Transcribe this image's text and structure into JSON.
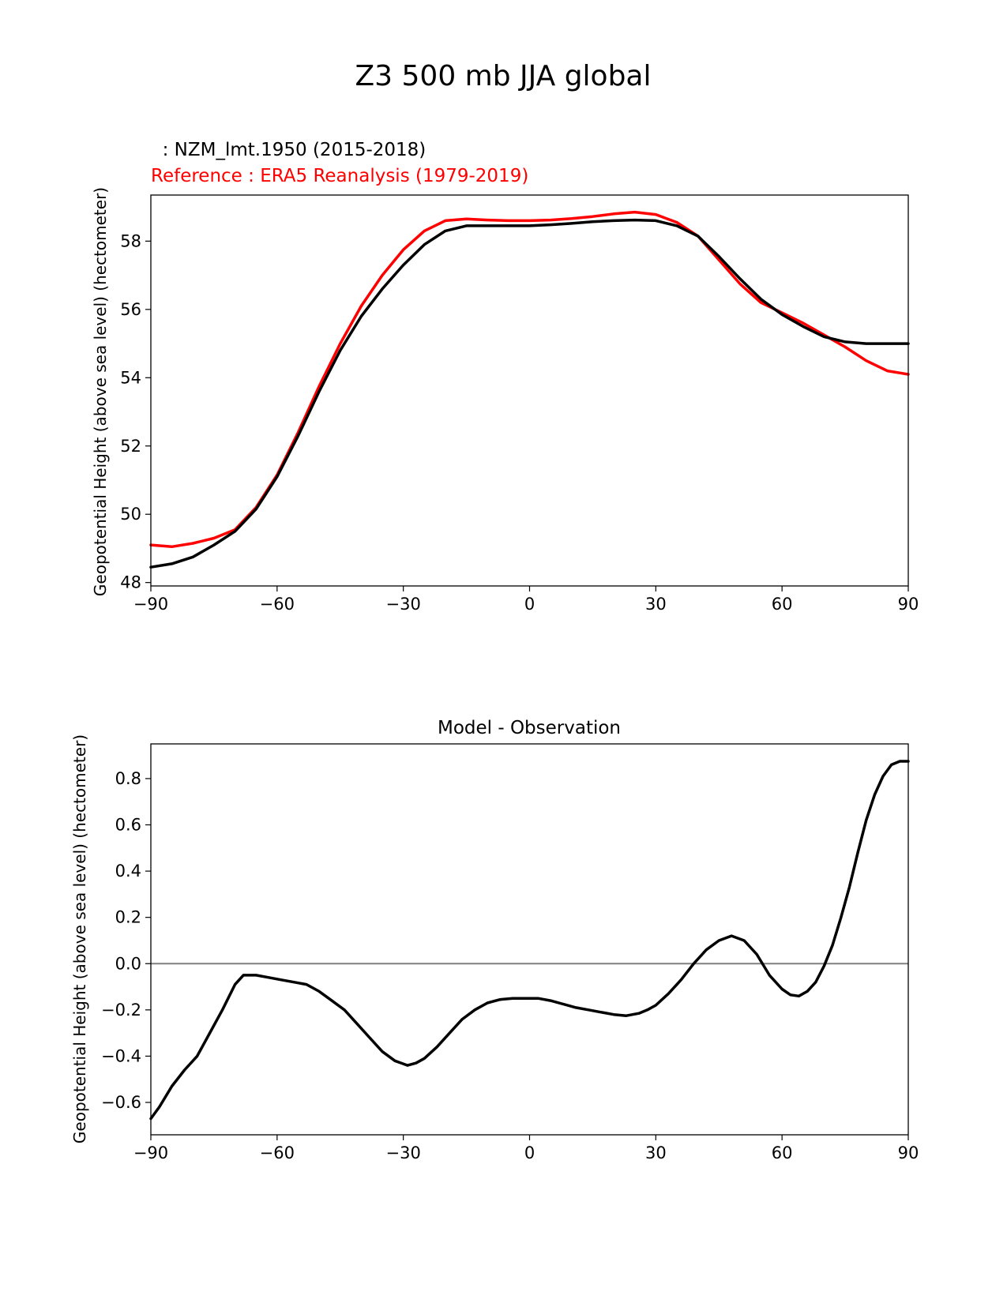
{
  "suptitle": "Z3 500 mb JJA global",
  "colors": {
    "model": "#000000",
    "reference": "#ff0000",
    "zero_line": "#808080",
    "frame": "#000000"
  },
  "chart_data": [
    {
      "type": "line",
      "legend": {
        "model_label": "  : NZM_lmt.1950 (2015-2018)",
        "reference_label": "Reference : ERA5 Reanalysis (1979-2019)"
      },
      "xlabel": "",
      "ylabel": "Geopotential Height (above sea level) (hectometer)",
      "xlim": [
        -90,
        90
      ],
      "ylim": [
        47.9,
        59.35
      ],
      "xticks": [
        -90,
        -60,
        -30,
        0,
        30,
        60,
        90
      ],
      "xtick_labels": [
        "−90",
        "−60",
        "−30",
        "0",
        "30",
        "60",
        "90"
      ],
      "yticks": [
        48,
        50,
        52,
        54,
        56,
        58
      ],
      "ytick_labels": [
        "48",
        "50",
        "52",
        "54",
        "56",
        "58"
      ],
      "x": [
        -90,
        -85,
        -80,
        -75,
        -70,
        -65,
        -60,
        -55,
        -50,
        -45,
        -40,
        -35,
        -30,
        -25,
        -20,
        -15,
        -10,
        -5,
        0,
        5,
        10,
        15,
        20,
        25,
        30,
        35,
        40,
        45,
        50,
        55,
        60,
        65,
        70,
        75,
        80,
        85,
        90
      ],
      "series": [
        {
          "name": "NZM_lmt.1950 (2015-2018)",
          "color": "#000000",
          "values": [
            48.45,
            48.55,
            48.75,
            49.1,
            49.5,
            50.15,
            51.1,
            52.3,
            53.6,
            54.8,
            55.8,
            56.6,
            57.3,
            57.9,
            58.3,
            58.45,
            58.45,
            58.45,
            58.45,
            58.48,
            58.52,
            58.57,
            58.6,
            58.62,
            58.6,
            58.45,
            58.15,
            57.55,
            56.9,
            56.3,
            55.85,
            55.5,
            55.2,
            55.05,
            55.0,
            55.0,
            55.0
          ]
        },
        {
          "name": "Reference : ERA5 Reanalysis (1979-2019)",
          "color": "#ff0000",
          "values": [
            49.1,
            49.05,
            49.15,
            49.3,
            49.55,
            50.2,
            51.15,
            52.4,
            53.75,
            55.0,
            56.1,
            57.0,
            57.75,
            58.3,
            58.6,
            58.65,
            58.62,
            58.6,
            58.6,
            58.62,
            58.66,
            58.72,
            58.8,
            58.85,
            58.78,
            58.55,
            58.15,
            57.45,
            56.75,
            56.2,
            55.9,
            55.6,
            55.25,
            54.9,
            54.5,
            54.2,
            54.1
          ]
        }
      ]
    },
    {
      "type": "line",
      "title": "Model - Observation",
      "xlabel": "",
      "ylabel": "Geopotential Height (above sea level) (hectometer)",
      "xlim": [
        -90,
        90
      ],
      "ylim": [
        -0.74,
        0.95
      ],
      "xticks": [
        -90,
        -60,
        -30,
        0,
        30,
        60,
        90
      ],
      "xtick_labels": [
        "−90",
        "−60",
        "−30",
        "0",
        "30",
        "60",
        "90"
      ],
      "yticks": [
        -0.6,
        -0.4,
        -0.2,
        0.0,
        0.2,
        0.4,
        0.6,
        0.8
      ],
      "ytick_labels": [
        "−0.6",
        "−0.4",
        "−0.2",
        "0.0",
        "0.2",
        "0.4",
        "0.6",
        "0.8"
      ],
      "zero_line": 0,
      "x": [
        -90,
        -88,
        -85,
        -82,
        -79,
        -76,
        -73,
        -70,
        -68,
        -65,
        -62,
        -59,
        -56,
        -53,
        -50,
        -47,
        -44,
        -41,
        -38,
        -35,
        -32,
        -29,
        -27,
        -25,
        -22,
        -19,
        -16,
        -13,
        -10,
        -7,
        -4,
        -1,
        2,
        5,
        8,
        11,
        14,
        17,
        20,
        23,
        26,
        28,
        30,
        33,
        36,
        39,
        42,
        45,
        48,
        51,
        54,
        57,
        60,
        62,
        64,
        66,
        68,
        70,
        72,
        74,
        76,
        78,
        80,
        82,
        84,
        86,
        88,
        90
      ],
      "series": [
        {
          "name": "Model - Observation",
          "color": "#000000",
          "values": [
            -0.67,
            -0.62,
            -0.53,
            -0.46,
            -0.4,
            -0.3,
            -0.2,
            -0.09,
            -0.05,
            -0.05,
            -0.06,
            -0.07,
            -0.08,
            -0.09,
            -0.12,
            -0.16,
            -0.2,
            -0.26,
            -0.32,
            -0.38,
            -0.42,
            -0.44,
            -0.43,
            -0.41,
            -0.36,
            -0.3,
            -0.24,
            -0.2,
            -0.17,
            -0.155,
            -0.15,
            -0.15,
            -0.15,
            -0.16,
            -0.175,
            -0.19,
            -0.2,
            -0.21,
            -0.22,
            -0.225,
            -0.215,
            -0.2,
            -0.18,
            -0.13,
            -0.07,
            0.0,
            0.06,
            0.1,
            0.12,
            0.1,
            0.04,
            -0.05,
            -0.11,
            -0.135,
            -0.14,
            -0.12,
            -0.08,
            -0.01,
            0.08,
            0.2,
            0.33,
            0.48,
            0.62,
            0.73,
            0.81,
            0.86,
            0.875,
            0.875
          ]
        }
      ]
    }
  ]
}
